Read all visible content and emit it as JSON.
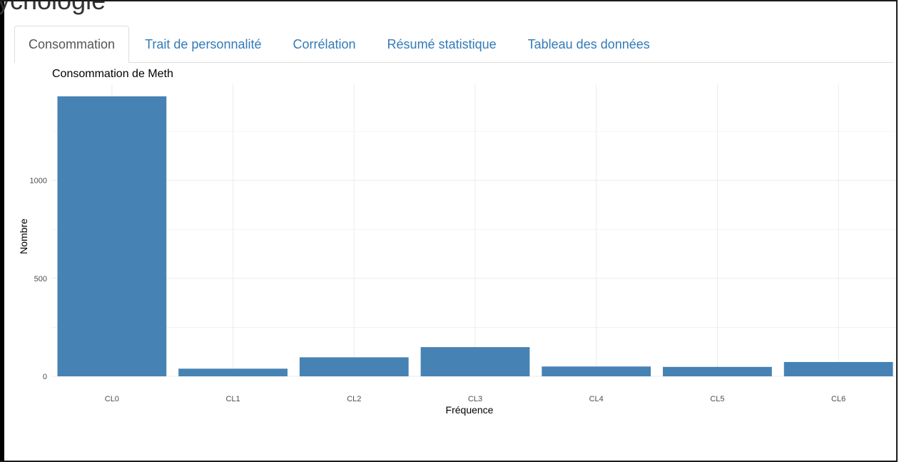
{
  "page": {
    "heading": "ychologie"
  },
  "tabs": [
    {
      "label": "Consommation",
      "active": true
    },
    {
      "label": "Trait de personnalité",
      "active": false
    },
    {
      "label": "Corrélation",
      "active": false
    },
    {
      "label": "Résumé statistique",
      "active": false
    },
    {
      "label": "Tableau des données",
      "active": false
    }
  ],
  "colors": {
    "bar": "#4682b4",
    "grid": "#ebebeb",
    "tab_link": "#337ab7",
    "tab_active": "#555555"
  },
  "chart_data": {
    "type": "bar",
    "title": "Consommation de Meth",
    "xlabel": "Fréquence",
    "ylabel": "Nombre",
    "categories": [
      "CL0",
      "CL1",
      "CL2",
      "CL3",
      "CL4",
      "CL5",
      "CL6"
    ],
    "values": [
      1429,
      39,
      97,
      149,
      50,
      48,
      73
    ],
    "ylim": [
      0,
      1500
    ],
    "yticks": [
      0,
      500,
      1000
    ],
    "grid": true,
    "legend": "none"
  }
}
